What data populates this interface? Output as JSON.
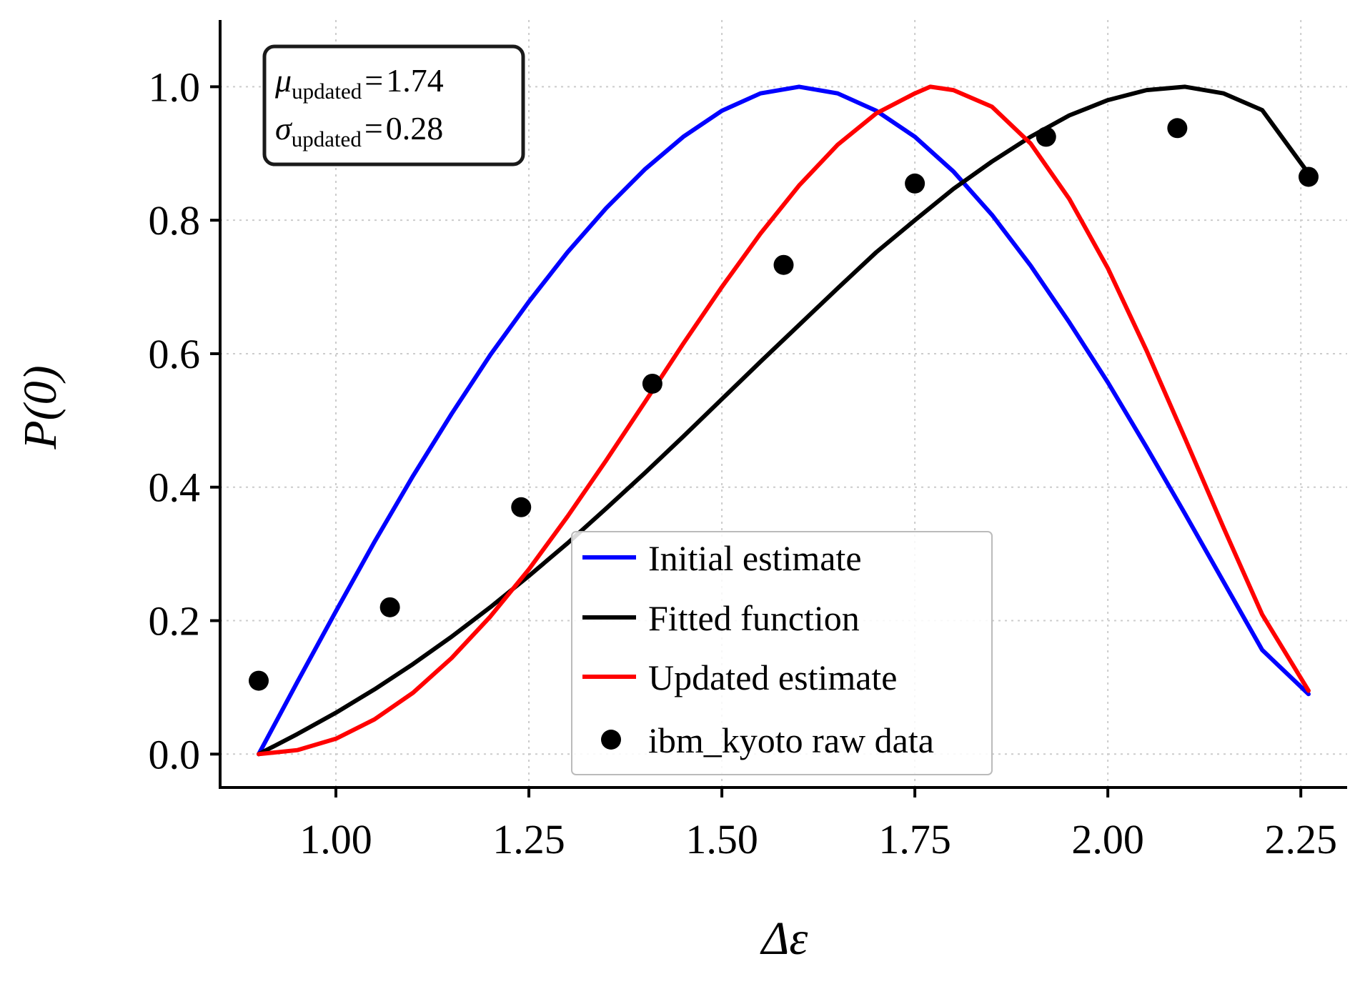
{
  "chart_data": {
    "type": "line",
    "title": "",
    "xlabel": "Δε",
    "ylabel": "P(0)",
    "xlim": [
      0.85,
      2.31
    ],
    "ylim": [
      -0.05,
      1.1
    ],
    "grid": true,
    "legend_position": "lower-center",
    "xticks": [
      1.0,
      1.25,
      1.5,
      1.75,
      2.0,
      2.25
    ],
    "xtick_labels": [
      "1.00",
      "1.25",
      "1.50",
      "1.75",
      "2.00",
      "2.25"
    ],
    "yticks": [
      0.0,
      0.2,
      0.4,
      0.6,
      0.8,
      1.0
    ],
    "ytick_labels": [
      "0.0",
      "0.2",
      "0.4",
      "0.6",
      "0.8",
      "1.0"
    ],
    "series": [
      {
        "name": "Initial estimate",
        "kind": "line",
        "color": "#0000ff",
        "x": [
          0.9,
          0.95,
          1.0,
          1.05,
          1.1,
          1.15,
          1.2,
          1.25,
          1.3,
          1.35,
          1.4,
          1.45,
          1.5,
          1.55,
          1.6,
          1.65,
          1.7,
          1.75,
          1.8,
          1.85,
          1.9,
          1.95,
          2.0,
          2.05,
          2.1,
          2.15,
          2.2,
          2.26
        ],
        "y": [
          0.0,
          0.108,
          0.214,
          0.318,
          0.417,
          0.51,
          0.598,
          0.678,
          0.752,
          0.818,
          0.876,
          0.925,
          0.964,
          0.99,
          1.0,
          0.99,
          0.964,
          0.925,
          0.873,
          0.808,
          0.732,
          0.647,
          0.557,
          0.46,
          0.36,
          0.258,
          0.156,
          0.09
        ]
      },
      {
        "name": "Fitted function",
        "kind": "line",
        "color": "#000000",
        "x": [
          0.9,
          0.95,
          1.0,
          1.05,
          1.1,
          1.15,
          1.2,
          1.25,
          1.3,
          1.35,
          1.4,
          1.45,
          1.5,
          1.55,
          1.6,
          1.65,
          1.7,
          1.75,
          1.8,
          1.85,
          1.9,
          1.95,
          2.0,
          2.05,
          2.1,
          2.15,
          2.2,
          2.26
        ],
        "y": [
          0.0,
          0.03,
          0.062,
          0.097,
          0.135,
          0.176,
          0.22,
          0.267,
          0.316,
          0.368,
          0.421,
          0.476,
          0.532,
          0.588,
          0.643,
          0.698,
          0.752,
          0.8,
          0.847,
          0.888,
          0.925,
          0.957,
          0.98,
          0.995,
          1.0,
          0.99,
          0.965,
          0.87
        ]
      },
      {
        "name": "Updated estimate",
        "kind": "line",
        "color": "#ff0000",
        "x": [
          0.9,
          0.95,
          1.0,
          1.05,
          1.1,
          1.15,
          1.2,
          1.25,
          1.3,
          1.35,
          1.4,
          1.45,
          1.5,
          1.55,
          1.6,
          1.65,
          1.7,
          1.75,
          1.77,
          1.8,
          1.85,
          1.9,
          1.95,
          2.0,
          2.05,
          2.1,
          2.15,
          2.2,
          2.26
        ],
        "y": [
          0.0,
          0.006,
          0.023,
          0.052,
          0.092,
          0.144,
          0.206,
          0.277,
          0.356,
          0.44,
          0.527,
          0.615,
          0.7,
          0.78,
          0.852,
          0.913,
          0.96,
          0.99,
          1.0,
          0.995,
          0.97,
          0.915,
          0.832,
          0.728,
          0.605,
          0.473,
          0.339,
          0.209,
          0.095
        ]
      },
      {
        "name": "ibm_kyoto raw data",
        "kind": "scatter",
        "color": "#000000",
        "x": [
          0.9,
          1.07,
          1.24,
          1.41,
          1.58,
          1.75,
          1.92,
          2.09,
          2.26
        ],
        "y": [
          0.11,
          0.22,
          0.37,
          0.555,
          0.733,
          0.855,
          0.925,
          0.938,
          0.865
        ]
      }
    ],
    "annotation": {
      "mu_symbol": "μ",
      "sigma_symbol": "σ",
      "subscript": "updated",
      "equals": "=",
      "mu_value": "1.74",
      "sigma_value": "0.28"
    }
  }
}
